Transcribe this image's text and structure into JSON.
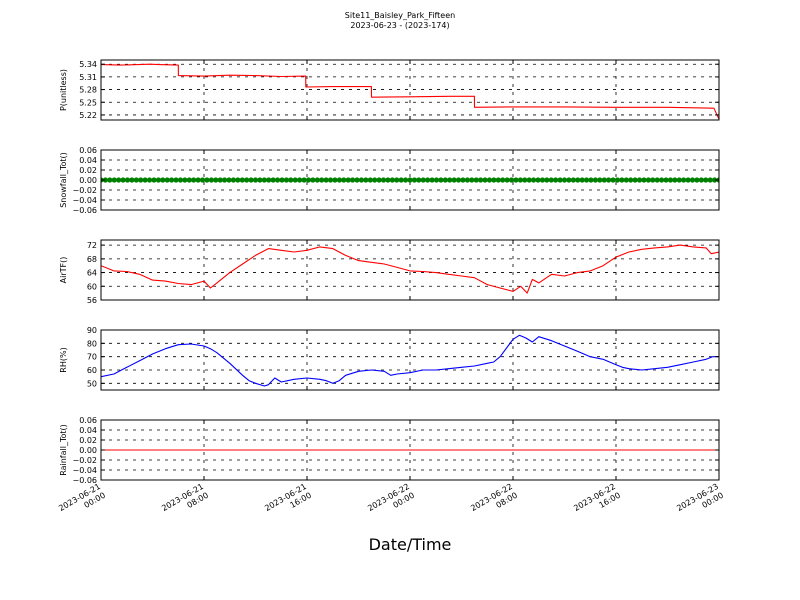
{
  "header": {
    "title": "Site11_Baisley_Park_Fifteen",
    "subtitle": "2023-06-23 - (2023-174)"
  },
  "chart_data": {
    "type": "line",
    "xlabel": "Date/Time",
    "x_ticks": [
      {
        "t": 0,
        "label": [
          "2023-06-21",
          "00:00"
        ]
      },
      {
        "t": 8,
        "label": [
          "2023-06-21",
          "08:00"
        ]
      },
      {
        "t": 16,
        "label": [
          "2023-06-21",
          "16:00"
        ]
      },
      {
        "t": 24,
        "label": [
          "2023-06-22",
          "00:00"
        ]
      },
      {
        "t": 32,
        "label": [
          "2023-06-22",
          "08:00"
        ]
      },
      {
        "t": 40,
        "label": [
          "2023-06-22",
          "16:00"
        ]
      },
      {
        "t": 48,
        "label": [
          "2023-06-23",
          "00:00"
        ]
      }
    ],
    "x_range": [
      "2023-06-21 00:00",
      "2023-06-23 00:00"
    ],
    "grid": true,
    "panels": [
      {
        "ylabel": "P(unitless)",
        "ylim": [
          5.208,
          5.35
        ],
        "yticks": [
          "5.34",
          "5.31",
          "5.28",
          "5.25",
          "5.22"
        ],
        "ytick_values": [
          5.34,
          5.31,
          5.28,
          5.25,
          5.22
        ],
        "color": "#ff0000",
        "marker": "line",
        "series": [
          {
            "name": "",
            "points": [
              [
                0,
                5.339
              ],
              [
                1.5,
                5.338
              ],
              [
                3.8,
                5.34
              ],
              [
                4.5,
                5.339
              ],
              [
                6.0,
                5.338
              ],
              [
                6.01,
                5.313
              ],
              [
                8.0,
                5.312
              ],
              [
                10.0,
                5.314
              ],
              [
                12.0,
                5.313
              ],
              [
                14.0,
                5.311
              ],
              [
                15.9,
                5.312
              ],
              [
                15.91,
                5.286
              ],
              [
                18.0,
                5.287
              ],
              [
                21.0,
                5.287
              ],
              [
                21.01,
                5.262
              ],
              [
                24.0,
                5.263
              ],
              [
                27.0,
                5.264
              ],
              [
                29.0,
                5.264
              ],
              [
                29.01,
                5.238
              ],
              [
                32.0,
                5.239
              ],
              [
                36.0,
                5.239
              ],
              [
                40.0,
                5.238
              ],
              [
                44.0,
                5.238
              ],
              [
                47.6,
                5.236
              ],
              [
                48.0,
                5.21
              ]
            ]
          }
        ]
      },
      {
        "ylabel": "Snowfall_Tot()",
        "ylim": [
          -0.06,
          0.06
        ],
        "yticks": [
          "0.06",
          "0.04",
          "0.02",
          "0.00",
          "−0.02",
          "−0.04",
          "−0.06"
        ],
        "ytick_values": [
          0.06,
          0.04,
          0.02,
          0.0,
          -0.02,
          -0.04,
          -0.06
        ],
        "color": "#008000",
        "marker": "dots",
        "series": [
          {
            "name": "",
            "points": [
              [
                0,
                0.0
              ],
              [
                48,
                0.0
              ]
            ]
          }
        ]
      },
      {
        "ylabel": "AirTF()",
        "ylim": [
          56,
          73.5
        ],
        "yticks": [
          "72",
          "68",
          "64",
          "60",
          "56"
        ],
        "ytick_values": [
          72,
          68,
          64,
          60,
          56
        ],
        "color": "#ff0000",
        "marker": "line",
        "series": [
          {
            "name": "",
            "points": [
              [
                0,
                66.0
              ],
              [
                1,
                64.5
              ],
              [
                2,
                64.3
              ],
              [
                3,
                63.5
              ],
              [
                4,
                61.8
              ],
              [
                5,
                61.5
              ],
              [
                6,
                60.8
              ],
              [
                7,
                60.5
              ],
              [
                8,
                61.5
              ],
              [
                8.5,
                59.5
              ],
              [
                9,
                61.0
              ],
              [
                10,
                64.0
              ],
              [
                11,
                66.5
              ],
              [
                12,
                69.0
              ],
              [
                13,
                71.0
              ],
              [
                14,
                70.5
              ],
              [
                15,
                70.0
              ],
              [
                16,
                70.5
              ],
              [
                17,
                71.5
              ],
              [
                18,
                71.0
              ],
              [
                19,
                69.0
              ],
              [
                20,
                67.5
              ],
              [
                21,
                67.0
              ],
              [
                22,
                66.5
              ],
              [
                23,
                65.5
              ],
              [
                24,
                64.5
              ],
              [
                25,
                64.3
              ],
              [
                26,
                64.0
              ],
              [
                27,
                63.5
              ],
              [
                28,
                63.0
              ],
              [
                29,
                62.5
              ],
              [
                30,
                60.5
              ],
              [
                31,
                59.5
              ],
              [
                32,
                58.5
              ],
              [
                32.6,
                60.0
              ],
              [
                33.1,
                58.0
              ],
              [
                33.5,
                62.0
              ],
              [
                34,
                61.0
              ],
              [
                35,
                63.5
              ],
              [
                36,
                63.0
              ],
              [
                37,
                64.0
              ],
              [
                38,
                64.5
              ],
              [
                39,
                66.0
              ],
              [
                40,
                68.5
              ],
              [
                41,
                70.0
              ],
              [
                42,
                70.8
              ],
              [
                43,
                71.2
              ],
              [
                44,
                71.5
              ],
              [
                45,
                72.0
              ],
              [
                46,
                71.5
              ],
              [
                47,
                71.2
              ],
              [
                47.4,
                69.5
              ],
              [
                48,
                70.0
              ]
            ]
          }
        ]
      },
      {
        "ylabel": "RH(%)",
        "ylim": [
          45,
          90
        ],
        "yticks": [
          "90",
          "80",
          "70",
          "60",
          "50"
        ],
        "ytick_values": [
          90,
          80,
          70,
          60,
          50
        ],
        "color": "#0000ff",
        "marker": "line",
        "series": [
          {
            "name": "",
            "points": [
              [
                0,
                55
              ],
              [
                1,
                57
              ],
              [
                2,
                62
              ],
              [
                3,
                67
              ],
              [
                4,
                72
              ],
              [
                5,
                76
              ],
              [
                6,
                79
              ],
              [
                7,
                79.5
              ],
              [
                8,
                78
              ],
              [
                8.5,
                76
              ],
              [
                9,
                73
              ],
              [
                10,
                65
              ],
              [
                11,
                56
              ],
              [
                11.5,
                52
              ],
              [
                12,
                50
              ],
              [
                12.7,
                48
              ],
              [
                13,
                49
              ],
              [
                13.5,
                54
              ],
              [
                14,
                51
              ],
              [
                15,
                53
              ],
              [
                16,
                54
              ],
              [
                17,
                53
              ],
              [
                17.5,
                52
              ],
              [
                18,
                50
              ],
              [
                18.5,
                52
              ],
              [
                19,
                56
              ],
              [
                20,
                59
              ],
              [
                21,
                60
              ],
              [
                22,
                59
              ],
              [
                22.5,
                56
              ],
              [
                23,
                57
              ],
              [
                24,
                58
              ],
              [
                25,
                60
              ],
              [
                26,
                60
              ],
              [
                27,
                61
              ],
              [
                28,
                62
              ],
              [
                29,
                63
              ],
              [
                30,
                65
              ],
              [
                30.5,
                66
              ],
              [
                31,
                70
              ],
              [
                32,
                83
              ],
              [
                32.5,
                86
              ],
              [
                33,
                84
              ],
              [
                33.5,
                81
              ],
              [
                34,
                85
              ],
              [
                35,
                82
              ],
              [
                36,
                78
              ],
              [
                37,
                74
              ],
              [
                38,
                70
              ],
              [
                39,
                68
              ],
              [
                40,
                64
              ],
              [
                40.5,
                62
              ],
              [
                41,
                61
              ],
              [
                42,
                60
              ],
              [
                43,
                61
              ],
              [
                44,
                62
              ],
              [
                45,
                64
              ],
              [
                46,
                66
              ],
              [
                47,
                68
              ],
              [
                47.5,
                70
              ],
              [
                48,
                70
              ]
            ]
          }
        ]
      },
      {
        "ylabel": "Rainfall_Tot()",
        "ylim": [
          -0.06,
          0.06
        ],
        "yticks": [
          "0.06",
          "0.04",
          "0.02",
          "0.00",
          "−0.02",
          "−0.04",
          "−0.06"
        ],
        "ytick_values": [
          0.06,
          0.04,
          0.02,
          0.0,
          -0.02,
          -0.04,
          -0.06
        ],
        "color": "#ff0000",
        "marker": "line",
        "series": [
          {
            "name": "",
            "points": [
              [
                0,
                0.0
              ],
              [
                48,
                0.0
              ]
            ]
          }
        ]
      }
    ]
  }
}
